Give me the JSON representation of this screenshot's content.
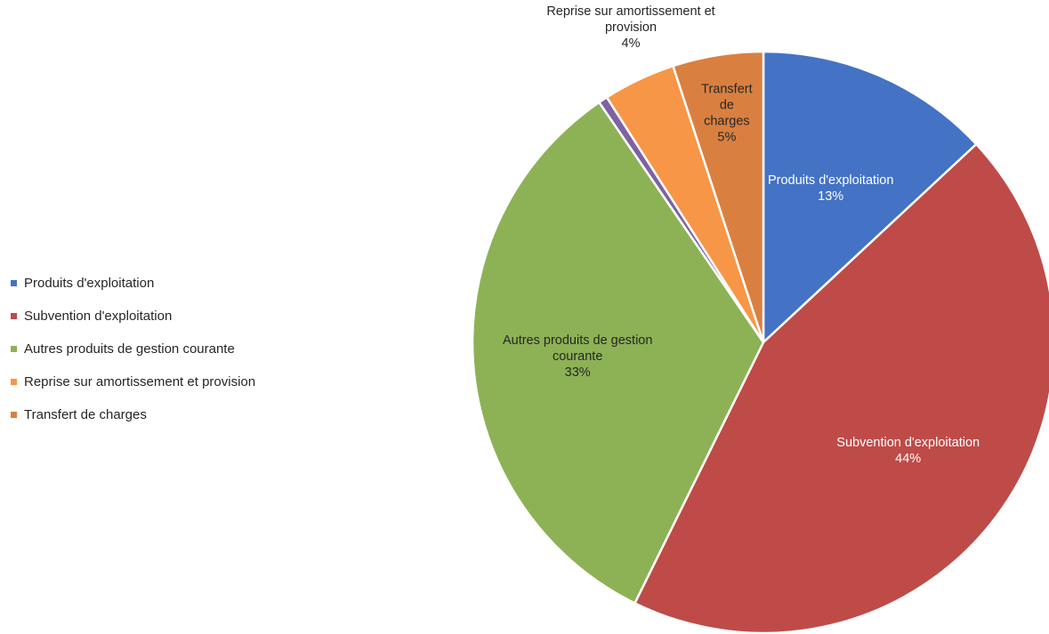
{
  "chart_data": {
    "type": "pie",
    "title": "",
    "legend_position": "left",
    "slices": [
      {
        "name": "Produits d'exploitation",
        "value": 13,
        "color": "#4472C4",
        "label_lines": [
          "Produits d'exploitation"
        ],
        "pct_label": "13%",
        "label_color": "#ffffff"
      },
      {
        "name": "Subvention d'exploitation",
        "value": 44,
        "color": "#BE4B48",
        "label_lines": [
          "Subvention d'exploitation"
        ],
        "pct_label": "44%",
        "label_color": "#ffffff"
      },
      {
        "name": "Autres produits de gestion courante",
        "value": 33,
        "color": "#8DB255",
        "label_lines": [
          "Autres produits de gestion",
          "courante"
        ],
        "pct_label": "33%",
        "label_color": "#262626"
      },
      {
        "name": "",
        "value": 0.5,
        "color": "#7E62A1",
        "label_lines": [],
        "pct_label": "",
        "label_color": "#262626",
        "in_legend": false
      },
      {
        "name": "Reprise sur amortissement et provision",
        "value": 4,
        "color": "#F79646",
        "label_lines": [
          "Reprise sur amortissement et",
          "provision"
        ],
        "pct_label": "4%",
        "label_color": "#262626"
      },
      {
        "name": "Transfert de charges",
        "value": 5,
        "color": "#D98041",
        "label_lines": [
          "Transfert",
          "de",
          "charges"
        ],
        "pct_label": "5%",
        "label_color": "#262626"
      }
    ]
  },
  "legend": {
    "items": [
      {
        "label": "Produits d'exploitation",
        "color": "#4472C4"
      },
      {
        "label": "Subvention d'exploitation",
        "color": "#BE4B48"
      },
      {
        "label": "Autres produits de gestion courante",
        "color": "#8DB255"
      },
      {
        "label": "Reprise sur amortissement et provision",
        "color": "#F79646"
      },
      {
        "label": "Transfert de charges",
        "color": "#D98041"
      }
    ]
  }
}
